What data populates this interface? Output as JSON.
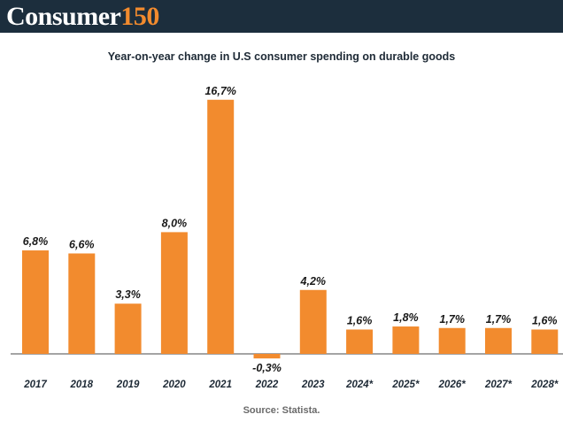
{
  "header": {
    "logo_word": "Consumer",
    "logo_number": "150"
  },
  "chart_data": {
    "type": "bar",
    "title": "Year-on-year change in U.S consumer spending on durable goods",
    "categories": [
      "2017",
      "2018",
      "2019",
      "2020",
      "2021",
      "2022",
      "2023",
      "2024*",
      "2025*",
      "2026*",
      "2027*",
      "2028*"
    ],
    "values": [
      6.8,
      6.6,
      3.3,
      8.0,
      16.7,
      -0.3,
      4.2,
      1.6,
      1.8,
      1.7,
      1.7,
      1.6
    ],
    "labels": [
      "6,8%",
      "6,6%",
      "3,3%",
      "8,0%",
      "16,7%",
      "-0,3%",
      "4,2%",
      "1,6%",
      "1,8%",
      "1,7%",
      "1,7%",
      "1,6%"
    ],
    "bar_color": "#f28b2e",
    "xlabel": "",
    "ylabel": "",
    "ylim": [
      -0.3,
      16.7
    ],
    "grid": false,
    "legend": "none"
  },
  "source_label": "Source:",
  "source_value": "Statista."
}
